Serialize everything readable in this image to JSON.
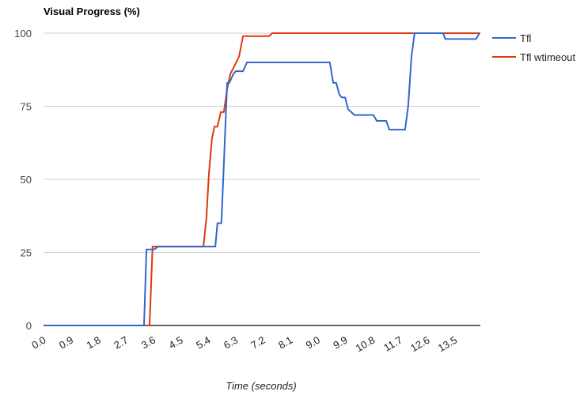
{
  "chart_data": {
    "type": "line",
    "title": "Visual Progress (%)",
    "xlabel": "Time (seconds)",
    "ylabel": "",
    "xlim": [
      0.0,
      14.34
    ],
    "ylim": [
      0,
      100
    ],
    "grid": true,
    "legend_position": "right",
    "x_ticks": [
      "0.0",
      "0.9",
      "1.8",
      "2.7",
      "3.6",
      "4.5",
      "5.4",
      "6.3",
      "7.2",
      "8.1",
      "9.0",
      "9.9",
      "10.8",
      "11.7",
      "12.6",
      "13.5"
    ],
    "y_ticks": [
      "0",
      "25",
      "50",
      "75",
      "100"
    ],
    "series": [
      {
        "name": "Tfl",
        "color": "#3366cc",
        "points": [
          [
            0.0,
            0
          ],
          [
            3.3,
            0
          ],
          [
            3.38,
            26
          ],
          [
            3.63,
            26
          ],
          [
            3.77,
            27
          ],
          [
            5.64,
            27
          ],
          [
            5.71,
            35
          ],
          [
            5.84,
            35
          ],
          [
            6.03,
            83
          ],
          [
            6.1,
            83
          ],
          [
            6.23,
            86
          ],
          [
            6.31,
            87
          ],
          [
            6.55,
            87
          ],
          [
            6.68,
            90
          ],
          [
            9.4,
            90
          ],
          [
            9.51,
            83
          ],
          [
            9.61,
            83
          ],
          [
            9.71,
            79
          ],
          [
            9.79,
            78
          ],
          [
            9.9,
            78
          ],
          [
            10.0,
            74
          ],
          [
            10.21,
            72
          ],
          [
            10.83,
            72
          ],
          [
            10.94,
            70
          ],
          [
            11.25,
            70
          ],
          [
            11.35,
            67
          ],
          [
            11.87,
            67
          ],
          [
            11.97,
            75
          ],
          [
            12.08,
            92
          ],
          [
            12.18,
            100
          ],
          [
            13.12,
            100
          ],
          [
            13.19,
            98
          ],
          [
            14.2,
            98
          ],
          [
            14.31,
            100
          ]
        ]
      },
      {
        "name": "Tfl wtimeout",
        "color": "#dc3912",
        "points": [
          [
            0.0,
            0
          ],
          [
            3.48,
            0
          ],
          [
            3.58,
            27
          ],
          [
            5.25,
            27
          ],
          [
            5.35,
            37
          ],
          [
            5.43,
            52
          ],
          [
            5.53,
            64
          ],
          [
            5.61,
            68
          ],
          [
            5.71,
            68
          ],
          [
            5.82,
            73
          ],
          [
            5.92,
            73
          ],
          [
            6.03,
            81
          ],
          [
            6.13,
            86
          ],
          [
            6.42,
            92
          ],
          [
            6.55,
            99
          ],
          [
            7.4,
            99
          ],
          [
            7.51,
            100
          ],
          [
            14.34,
            100
          ]
        ]
      }
    ]
  },
  "legend": {
    "items": [
      {
        "label": "Tfl",
        "color": "#3366cc"
      },
      {
        "label": "Tfl wtimeout",
        "color": "#dc3912"
      }
    ]
  }
}
